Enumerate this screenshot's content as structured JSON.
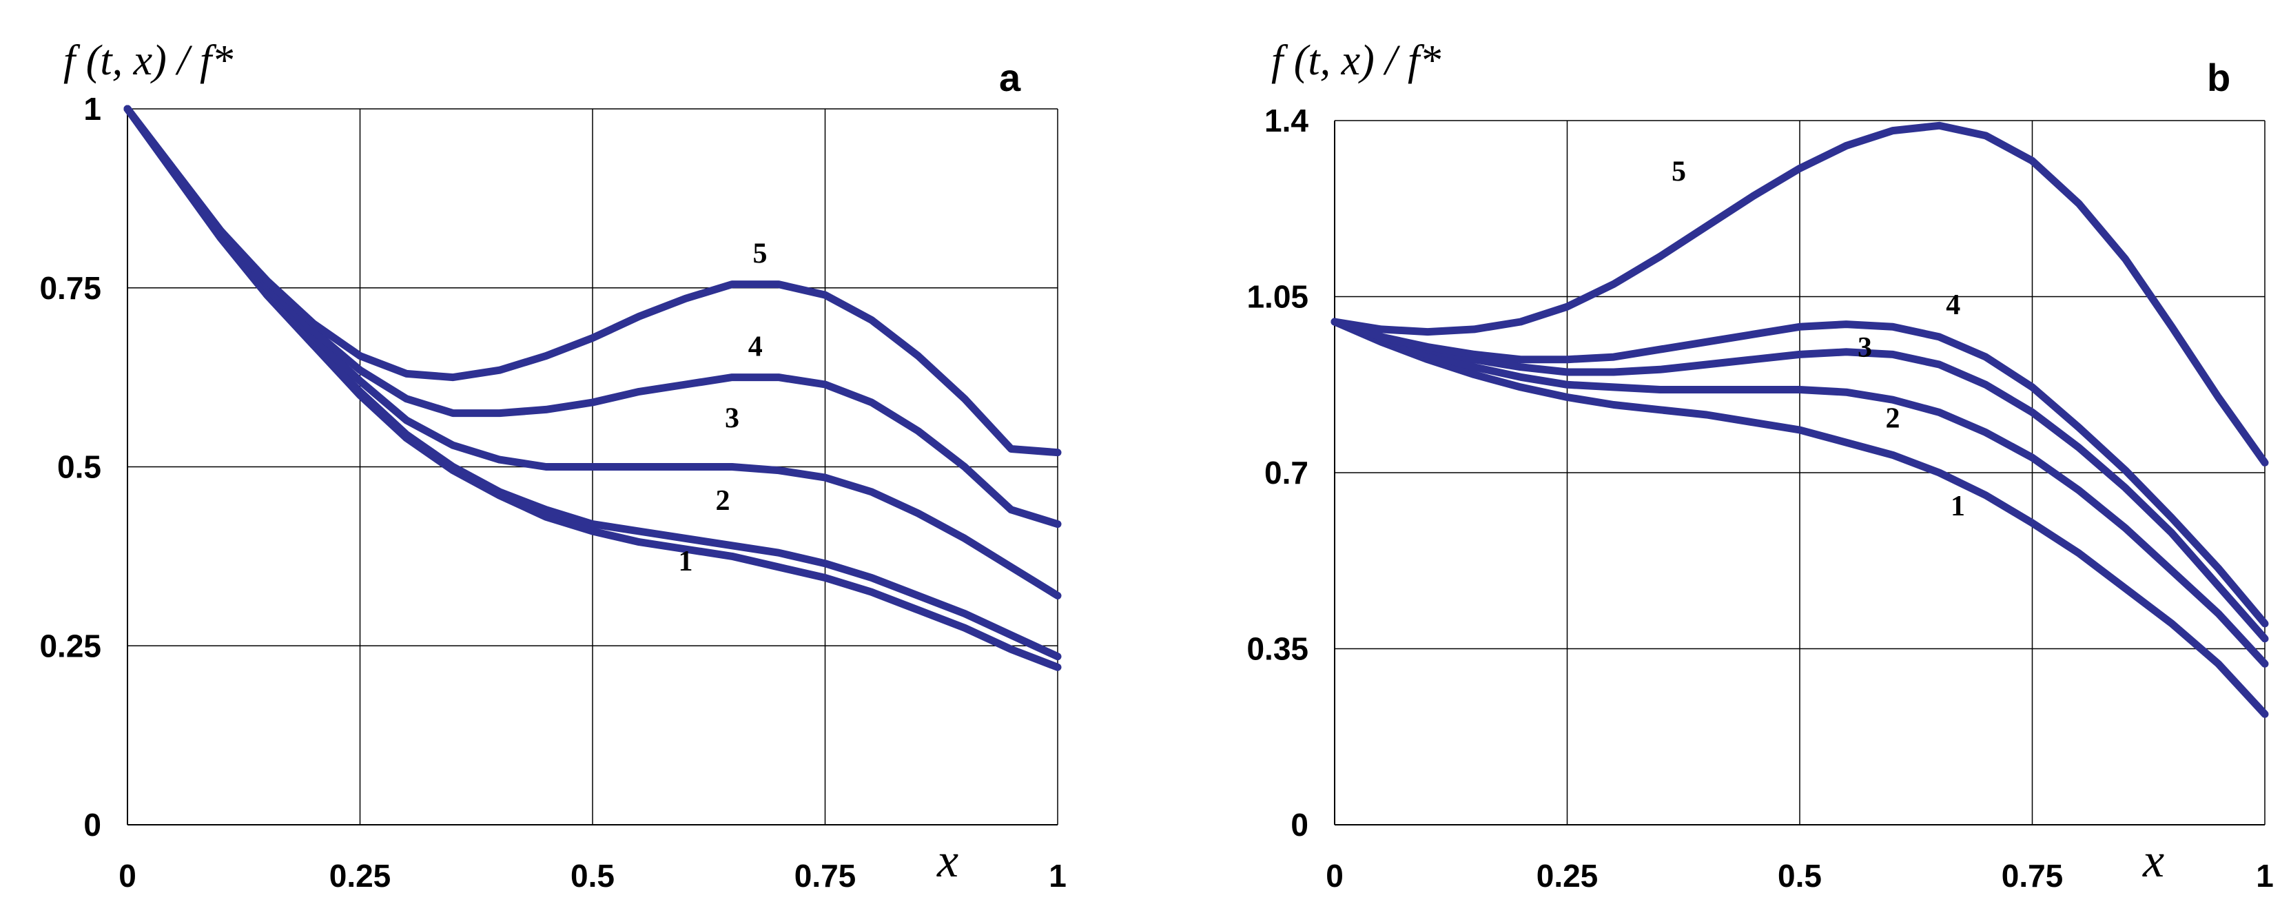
{
  "colors": {
    "series": "#2E3192"
  },
  "chart_data": [
    {
      "type": "line",
      "panel": "a",
      "title": "a",
      "ylabel": "f (t, x) / f*",
      "xlabel": "x",
      "xlim": [
        0,
        1
      ],
      "ylim": [
        0,
        1
      ],
      "xticks": [
        0,
        0.25,
        0.5,
        0.75,
        1
      ],
      "xtick_labels": [
        "0",
        "0.25",
        "0.5",
        "0.75",
        "1"
      ],
      "yticks": [
        0,
        0.25,
        0.5,
        0.75,
        1
      ],
      "ytick_labels": [
        "0",
        "0.25",
        "0.5",
        "0.75",
        "1"
      ],
      "grid": true,
      "series": [
        {
          "name": "1",
          "label_at": [
            0.6,
            0.355
          ],
          "x": [
            0,
            0.05,
            0.1,
            0.15,
            0.2,
            0.25,
            0.3,
            0.35,
            0.4,
            0.45,
            0.5,
            0.55,
            0.6,
            0.65,
            0.7,
            0.75,
            0.8,
            0.85,
            0.9,
            0.95,
            1.0
          ],
          "y": [
            1.0,
            0.91,
            0.82,
            0.74,
            0.67,
            0.6,
            0.54,
            0.495,
            0.46,
            0.43,
            0.41,
            0.395,
            0.385,
            0.375,
            0.36,
            0.345,
            0.325,
            0.3,
            0.275,
            0.245,
            0.22
          ]
        },
        {
          "name": "2",
          "label_at": [
            0.64,
            0.44
          ],
          "x": [
            0,
            0.05,
            0.1,
            0.15,
            0.2,
            0.25,
            0.3,
            0.35,
            0.4,
            0.45,
            0.5,
            0.55,
            0.6,
            0.65,
            0.7,
            0.75,
            0.8,
            0.85,
            0.9,
            0.95,
            1.0
          ],
          "y": [
            1.0,
            0.91,
            0.82,
            0.74,
            0.67,
            0.605,
            0.545,
            0.5,
            0.465,
            0.44,
            0.42,
            0.41,
            0.4,
            0.39,
            0.38,
            0.365,
            0.345,
            0.32,
            0.295,
            0.265,
            0.235
          ]
        },
        {
          "name": "3",
          "label_at": [
            0.65,
            0.555
          ],
          "x": [
            0,
            0.05,
            0.1,
            0.15,
            0.2,
            0.25,
            0.3,
            0.35,
            0.4,
            0.45,
            0.5,
            0.55,
            0.6,
            0.65,
            0.7,
            0.75,
            0.8,
            0.85,
            0.9,
            0.95,
            1.0
          ],
          "y": [
            1.0,
            0.91,
            0.825,
            0.75,
            0.68,
            0.62,
            0.565,
            0.53,
            0.51,
            0.5,
            0.5,
            0.5,
            0.5,
            0.5,
            0.495,
            0.485,
            0.465,
            0.435,
            0.4,
            0.36,
            0.32
          ]
        },
        {
          "name": "4",
          "label_at": [
            0.675,
            0.655
          ],
          "x": [
            0,
            0.05,
            0.1,
            0.15,
            0.2,
            0.25,
            0.3,
            0.35,
            0.4,
            0.45,
            0.5,
            0.55,
            0.6,
            0.65,
            0.7,
            0.75,
            0.8,
            0.85,
            0.9,
            0.95,
            1.0
          ],
          "y": [
            1.0,
            0.915,
            0.83,
            0.755,
            0.69,
            0.635,
            0.595,
            0.575,
            0.575,
            0.58,
            0.59,
            0.605,
            0.615,
            0.625,
            0.625,
            0.615,
            0.59,
            0.55,
            0.5,
            0.44,
            0.42
          ]
        },
        {
          "name": "5",
          "label_at": [
            0.68,
            0.785
          ],
          "x": [
            0,
            0.05,
            0.1,
            0.15,
            0.2,
            0.25,
            0.3,
            0.35,
            0.4,
            0.45,
            0.5,
            0.55,
            0.6,
            0.65,
            0.7,
            0.75,
            0.8,
            0.85,
            0.9,
            0.95,
            1.0
          ],
          "y": [
            1.0,
            0.915,
            0.83,
            0.76,
            0.7,
            0.655,
            0.63,
            0.625,
            0.635,
            0.655,
            0.68,
            0.71,
            0.735,
            0.755,
            0.755,
            0.74,
            0.705,
            0.655,
            0.595,
            0.525,
            0.52
          ]
        }
      ]
    },
    {
      "type": "line",
      "panel": "b",
      "title": "b",
      "ylabel": "f (t, x) / f*",
      "xlabel": "x",
      "xlim": [
        0,
        1
      ],
      "ylim": [
        0,
        1.4
      ],
      "xticks": [
        0,
        0.25,
        0.5,
        0.75,
        1
      ],
      "xtick_labels": [
        "0",
        "0.25",
        "0.5",
        "0.75",
        "1"
      ],
      "yticks": [
        0,
        0.35,
        0.7,
        1.05,
        1.4
      ],
      "ytick_labels": [
        "0",
        "0.35",
        "0.7",
        "1.05",
        "1.4"
      ],
      "grid": true,
      "series": [
        {
          "name": "1",
          "label_at": [
            0.67,
            0.615
          ],
          "x": [
            0,
            0.05,
            0.1,
            0.15,
            0.2,
            0.25,
            0.3,
            0.35,
            0.4,
            0.45,
            0.5,
            0.55,
            0.6,
            0.65,
            0.7,
            0.75,
            0.8,
            0.85,
            0.9,
            0.95,
            1.0
          ],
          "y": [
            1.0,
            0.96,
            0.925,
            0.895,
            0.87,
            0.85,
            0.835,
            0.825,
            0.815,
            0.8,
            0.785,
            0.76,
            0.735,
            0.7,
            0.655,
            0.6,
            0.54,
            0.47,
            0.4,
            0.32,
            0.22
          ]
        },
        {
          "name": "2",
          "label_at": [
            0.6,
            0.79
          ],
          "x": [
            0,
            0.05,
            0.1,
            0.15,
            0.2,
            0.25,
            0.3,
            0.35,
            0.4,
            0.45,
            0.5,
            0.55,
            0.6,
            0.65,
            0.7,
            0.75,
            0.8,
            0.85,
            0.9,
            0.95,
            1.0
          ],
          "y": [
            1.0,
            0.965,
            0.935,
            0.91,
            0.89,
            0.875,
            0.87,
            0.865,
            0.865,
            0.865,
            0.865,
            0.86,
            0.845,
            0.82,
            0.78,
            0.73,
            0.665,
            0.59,
            0.505,
            0.42,
            0.32
          ]
        },
        {
          "name": "3",
          "label_at": [
            0.57,
            0.93
          ],
          "x": [
            0,
            0.05,
            0.1,
            0.15,
            0.2,
            0.25,
            0.3,
            0.35,
            0.4,
            0.45,
            0.5,
            0.55,
            0.6,
            0.65,
            0.7,
            0.75,
            0.8,
            0.85,
            0.9,
            0.95,
            1.0
          ],
          "y": [
            1.0,
            0.97,
            0.945,
            0.925,
            0.91,
            0.9,
            0.9,
            0.905,
            0.915,
            0.925,
            0.935,
            0.94,
            0.935,
            0.915,
            0.875,
            0.82,
            0.75,
            0.67,
            0.58,
            0.475,
            0.37
          ]
        },
        {
          "name": "4",
          "label_at": [
            0.665,
            1.015
          ],
          "x": [
            0,
            0.05,
            0.1,
            0.15,
            0.2,
            0.25,
            0.3,
            0.35,
            0.4,
            0.45,
            0.5,
            0.55,
            0.6,
            0.65,
            0.7,
            0.75,
            0.8,
            0.85,
            0.9,
            0.95,
            1.0
          ],
          "y": [
            1.0,
            0.97,
            0.95,
            0.935,
            0.925,
            0.925,
            0.93,
            0.945,
            0.96,
            0.975,
            0.99,
            0.995,
            0.99,
            0.97,
            0.93,
            0.87,
            0.79,
            0.705,
            0.61,
            0.51,
            0.4
          ]
        },
        {
          "name": "5",
          "label_at": [
            0.37,
            1.28
          ],
          "x": [
            0,
            0.05,
            0.1,
            0.15,
            0.2,
            0.25,
            0.3,
            0.35,
            0.4,
            0.45,
            0.5,
            0.55,
            0.6,
            0.65,
            0.7,
            0.75,
            0.8,
            0.85,
            0.9,
            0.95,
            1.0
          ],
          "y": [
            1.0,
            0.985,
            0.98,
            0.985,
            1.0,
            1.03,
            1.075,
            1.13,
            1.19,
            1.25,
            1.305,
            1.35,
            1.38,
            1.39,
            1.37,
            1.32,
            1.235,
            1.125,
            0.99,
            0.85,
            0.72
          ]
        }
      ]
    }
  ]
}
